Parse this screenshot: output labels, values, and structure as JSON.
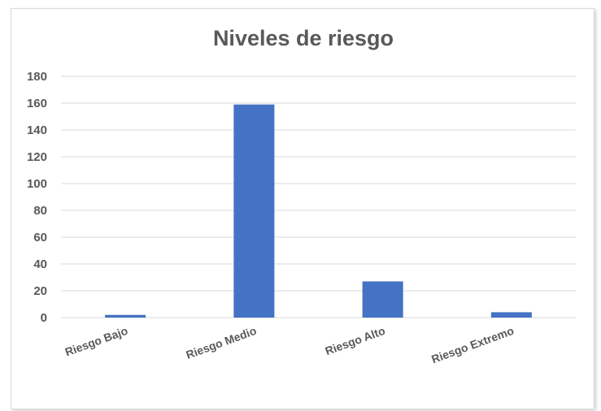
{
  "chart_data": {
    "type": "bar",
    "title": "Niveles de riesgo",
    "xlabel": "",
    "ylabel": "",
    "categories": [
      "Riesgo Bajo",
      "Riesgo Medio",
      "Riesgo Alto",
      "Riesgo Extremo"
    ],
    "values": [
      2,
      159,
      27,
      4
    ],
    "ylim": [
      0,
      180
    ],
    "yticks": [
      0,
      20,
      40,
      60,
      80,
      100,
      120,
      140,
      160,
      180
    ],
    "grid": true,
    "legend": "none",
    "bar_color": "#4472C4",
    "grid_color": "#d9d9d9",
    "text_color": "#595959"
  }
}
